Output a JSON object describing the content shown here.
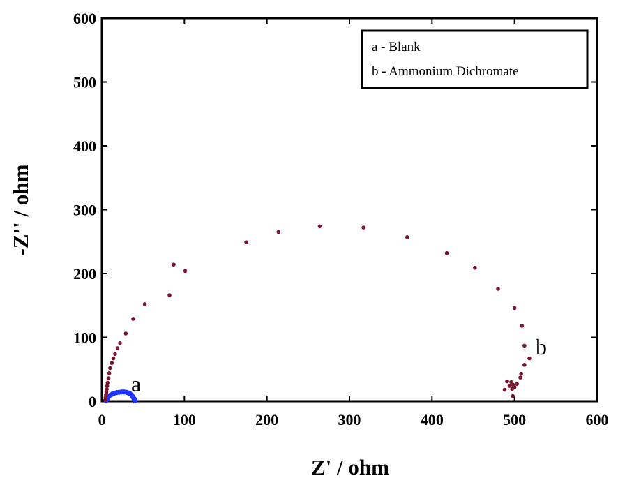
{
  "chart_data": {
    "type": "scatter",
    "xlabel": "Z' / ohm",
    "ylabel": "-Z'' / ohm",
    "xlim": [
      0,
      600
    ],
    "ylim": [
      0,
      600
    ],
    "xticks": [
      0,
      100,
      200,
      300,
      400,
      500,
      600
    ],
    "yticks": [
      0,
      100,
      200,
      300,
      400,
      500,
      600
    ],
    "grid": false,
    "legend": {
      "placement": "top-right",
      "entries": [
        "a - Blank",
        "b - Ammonium Dichromate"
      ]
    },
    "series": [
      {
        "label": "a",
        "color": "#1f35ff",
        "points": [
          [
            5,
            1
          ],
          [
            6,
            3
          ],
          [
            7,
            5
          ],
          [
            8,
            7
          ],
          [
            9,
            8.5
          ],
          [
            11,
            10
          ],
          [
            13,
            11.5
          ],
          [
            15,
            12.5
          ],
          [
            18,
            13.5
          ],
          [
            21,
            14
          ],
          [
            24,
            14.5
          ],
          [
            27,
            14.5
          ],
          [
            30,
            14
          ],
          [
            32,
            13
          ],
          [
            34,
            12
          ],
          [
            36,
            10
          ],
          [
            37,
            8
          ],
          [
            38,
            6
          ],
          [
            39,
            4
          ],
          [
            40,
            2
          ],
          [
            40,
            0.5
          ]
        ]
      },
      {
        "label": "b",
        "color": "#7a1530",
        "points": [
          [
            4,
            2
          ],
          [
            4.5,
            6
          ],
          [
            5,
            10
          ],
          [
            5.5,
            14
          ],
          [
            6,
            19
          ],
          [
            6.5,
            24
          ],
          [
            7,
            29
          ],
          [
            8,
            36
          ],
          [
            9,
            44
          ],
          [
            10,
            52
          ],
          [
            12,
            60
          ],
          [
            14,
            67
          ],
          [
            16,
            74
          ],
          [
            19,
            83
          ],
          [
            22,
            91
          ],
          [
            29,
            106
          ],
          [
            38,
            129
          ],
          [
            52,
            152
          ],
          [
            82,
            166
          ],
          [
            87,
            214
          ],
          [
            101,
            204
          ],
          [
            175,
            249
          ],
          [
            214,
            265
          ],
          [
            264,
            274
          ],
          [
            317,
            272
          ],
          [
            370,
            257
          ],
          [
            418,
            232
          ],
          [
            452,
            209
          ],
          [
            480,
            176
          ],
          [
            500,
            146
          ],
          [
            509,
            118
          ],
          [
            512,
            87
          ],
          [
            518,
            67
          ],
          [
            512,
            57
          ],
          [
            508,
            43
          ],
          [
            507,
            37
          ],
          [
            503,
            27
          ],
          [
            500,
            22
          ],
          [
            498,
            26
          ],
          [
            496,
            30
          ],
          [
            494,
            24
          ],
          [
            491,
            31
          ],
          [
            488,
            18
          ],
          [
            497,
            19
          ],
          [
            498,
            8
          ]
        ]
      }
    ]
  }
}
